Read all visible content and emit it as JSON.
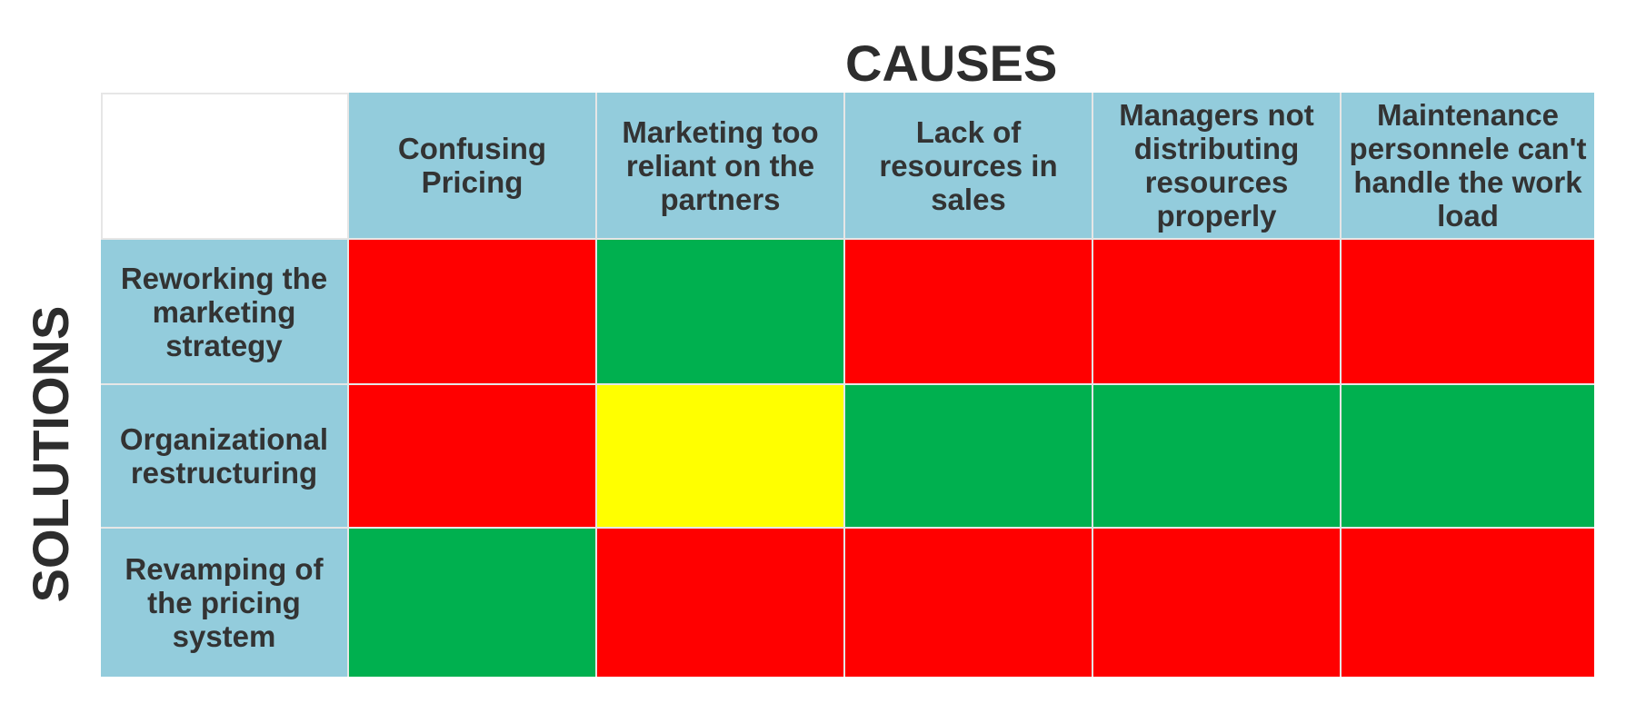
{
  "titles": {
    "causes": "CAUSES",
    "solutions": "SOLUTIONS"
  },
  "causes": [
    "Confusing Pricing",
    "Marketing too reliant on the partners",
    "Lack of resources in sales",
    "Managers not distributing resources properly",
    "Maintenance personnele can't handle the work load"
  ],
  "solutions": [
    "Reworking the marketing strategy",
    "Organizational restructuring",
    "Revamping of the pricing system"
  ],
  "legend_colors": {
    "red": "#ff0000",
    "green": "#00b04f",
    "yellow": "#ffff00",
    "header": "#93ccdc"
  },
  "matrix": [
    [
      "red",
      "green",
      "red",
      "red",
      "red"
    ],
    [
      "red",
      "yellow",
      "green",
      "green",
      "green"
    ],
    [
      "green",
      "red",
      "red",
      "red",
      "red"
    ]
  ]
}
